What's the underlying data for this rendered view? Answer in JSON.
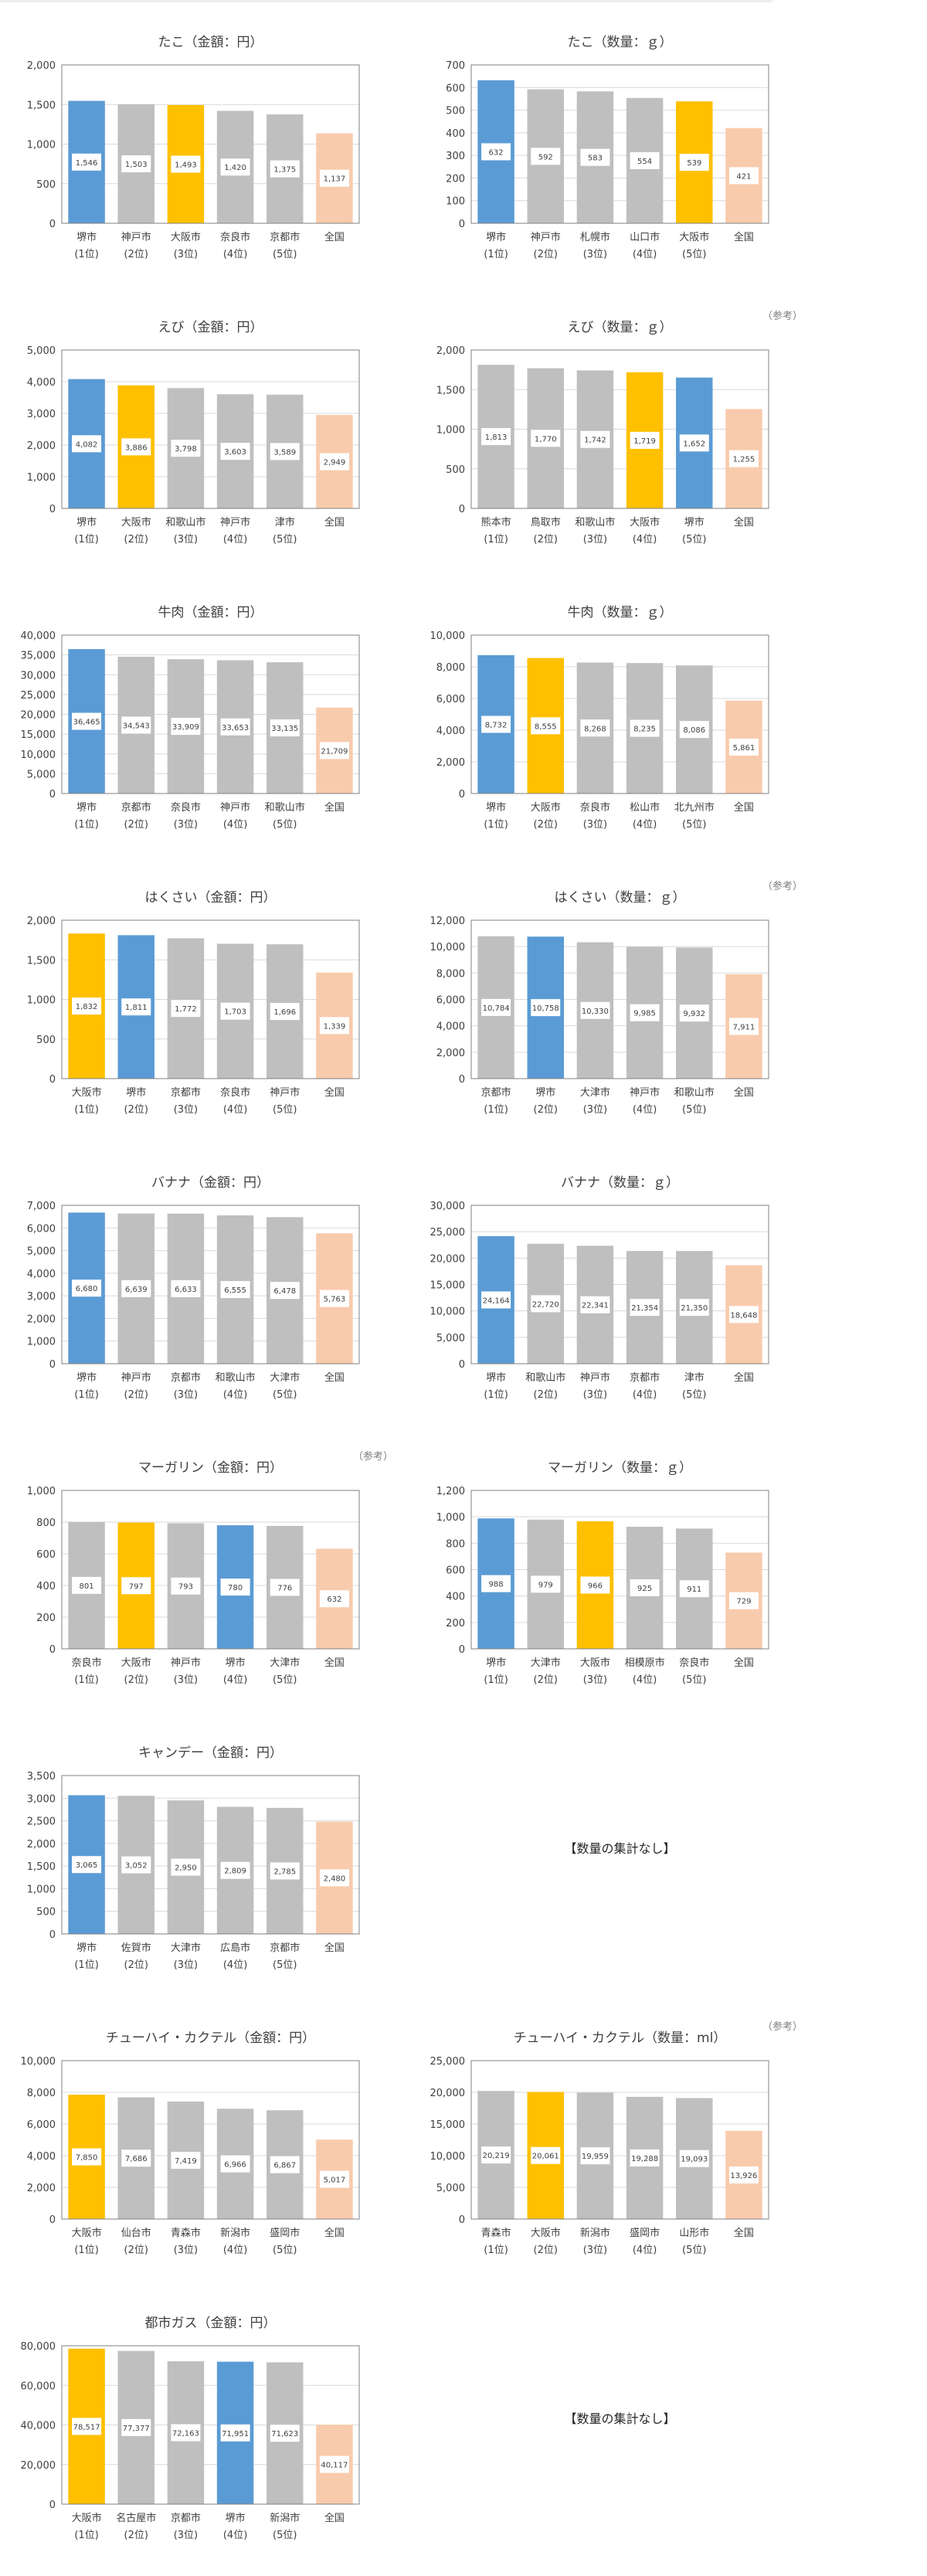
{
  "colors": {
    "blue": "#5b9bd5",
    "yellow": "#ffc000",
    "gray": "#bfbfbf",
    "national": "#f8cbad"
  },
  "notes": {
    "sankou": "（参考）",
    "no_quantity": "【数量の集計なし】"
  },
  "chart_data": [
    {
      "type": "bar",
      "title": "たこ（金額：円）",
      "ylim": [
        0,
        2000
      ],
      "yticks": [
        0,
        500,
        1000,
        1500,
        2000
      ],
      "categories": [
        "堺市",
        "神戸市",
        "大阪市",
        "奈良市",
        "京都市",
        "全国"
      ],
      "ranks": [
        "(1位)",
        "(2位)",
        "(3位)",
        "(4位)",
        "(5位)",
        ""
      ],
      "values": [
        1546,
        1503,
        1493,
        1420,
        1375,
        1137
      ],
      "value_labels": [
        "1,546",
        "1,503",
        "1,493",
        "1,420",
        "1,375",
        "1,137"
      ],
      "bar_colors": [
        "blue",
        "gray",
        "yellow",
        "gray",
        "gray",
        "national"
      ]
    },
    {
      "type": "bar",
      "title": "たこ（数量：ｇ）",
      "ylim": [
        0,
        700
      ],
      "yticks": [
        0,
        100,
        200,
        300,
        400,
        500,
        600,
        700
      ],
      "categories": [
        "堺市",
        "神戸市",
        "札幌市",
        "山口市",
        "大阪市",
        "全国"
      ],
      "ranks": [
        "(1位)",
        "(2位)",
        "(3位)",
        "(4位)",
        "(5位)",
        ""
      ],
      "values": [
        632,
        592,
        583,
        554,
        539,
        421
      ],
      "value_labels": [
        "632",
        "592",
        "583",
        "554",
        "539",
        "421"
      ],
      "bar_colors": [
        "blue",
        "gray",
        "gray",
        "gray",
        "yellow",
        "national"
      ]
    },
    {
      "type": "bar",
      "title": "えび（金額：円）",
      "ylim": [
        0,
        5000
      ],
      "yticks": [
        0,
        1000,
        2000,
        3000,
        4000,
        5000
      ],
      "categories": [
        "堺市",
        "大阪市",
        "和歌山市",
        "神戸市",
        "津市",
        "全国"
      ],
      "ranks": [
        "(1位)",
        "(2位)",
        "(3位)",
        "(4位)",
        "(5位)",
        ""
      ],
      "values": [
        4082,
        3886,
        3798,
        3603,
        3589,
        2949
      ],
      "value_labels": [
        "4,082",
        "3,886",
        "3,798",
        "3,603",
        "3,589",
        "2,949"
      ],
      "bar_colors": [
        "blue",
        "yellow",
        "gray",
        "gray",
        "gray",
        "national"
      ]
    },
    {
      "type": "bar",
      "title": "えび（数量：ｇ）",
      "ylim": [
        0,
        2000
      ],
      "yticks": [
        0,
        500,
        1000,
        1500,
        2000
      ],
      "note": "sankou",
      "categories": [
        "熊本市",
        "鳥取市",
        "和歌山市",
        "大阪市",
        "堺市",
        "全国"
      ],
      "ranks": [
        "(1位)",
        "(2位)",
        "(3位)",
        "(4位)",
        "(5位)",
        ""
      ],
      "values": [
        1813,
        1770,
        1742,
        1719,
        1652,
        1255
      ],
      "value_labels": [
        "1,813",
        "1,770",
        "1,742",
        "1,719",
        "1,652",
        "1,255"
      ],
      "bar_colors": [
        "gray",
        "gray",
        "gray",
        "yellow",
        "blue",
        "national"
      ]
    },
    {
      "type": "bar",
      "title": "牛肉（金額：円）",
      "ylim": [
        0,
        40000
      ],
      "yticks": [
        0,
        5000,
        10000,
        15000,
        20000,
        25000,
        30000,
        35000,
        40000
      ],
      "categories": [
        "堺市",
        "京都市",
        "奈良市",
        "神戸市",
        "和歌山市",
        "全国"
      ],
      "ranks": [
        "(1位)",
        "(2位)",
        "(3位)",
        "(4位)",
        "(5位)",
        ""
      ],
      "values": [
        36465,
        34543,
        33909,
        33653,
        33135,
        21709
      ],
      "value_labels": [
        "36,465",
        "34,543",
        "33,909",
        "33,653",
        "33,135",
        "21,709"
      ],
      "bar_colors": [
        "blue",
        "gray",
        "gray",
        "gray",
        "gray",
        "national"
      ]
    },
    {
      "type": "bar",
      "title": "牛肉（数量：ｇ）",
      "ylim": [
        0,
        10000
      ],
      "yticks": [
        0,
        2000,
        4000,
        6000,
        8000,
        10000
      ],
      "categories": [
        "堺市",
        "大阪市",
        "奈良市",
        "松山市",
        "北九州市",
        "全国"
      ],
      "ranks": [
        "(1位)",
        "(2位)",
        "(3位)",
        "(4位)",
        "(5位)",
        ""
      ],
      "values": [
        8732,
        8555,
        8268,
        8235,
        8086,
        5861
      ],
      "value_labels": [
        "8,732",
        "8,555",
        "8,268",
        "8,235",
        "8,086",
        "5,861"
      ],
      "bar_colors": [
        "blue",
        "yellow",
        "gray",
        "gray",
        "gray",
        "national"
      ]
    },
    {
      "type": "bar",
      "title": "はくさい（金額：円）",
      "ylim": [
        0,
        2000
      ],
      "yticks": [
        0,
        500,
        1000,
        1500,
        2000
      ],
      "categories": [
        "大阪市",
        "堺市",
        "京都市",
        "奈良市",
        "神戸市",
        "全国"
      ],
      "ranks": [
        "(1位)",
        "(2位)",
        "(3位)",
        "(4位)",
        "(5位)",
        ""
      ],
      "values": [
        1832,
        1811,
        1772,
        1703,
        1696,
        1339
      ],
      "value_labels": [
        "1,832",
        "1,811",
        "1,772",
        "1,703",
        "1,696",
        "1,339"
      ],
      "bar_colors": [
        "yellow",
        "blue",
        "gray",
        "gray",
        "gray",
        "national"
      ]
    },
    {
      "type": "bar",
      "title": "はくさい（数量：ｇ）",
      "ylim": [
        0,
        12000
      ],
      "yticks": [
        0,
        2000,
        4000,
        6000,
        8000,
        10000,
        12000
      ],
      "note": "sankou",
      "categories": [
        "京都市",
        "堺市",
        "大津市",
        "神戸市",
        "和歌山市",
        "全国"
      ],
      "ranks": [
        "(1位)",
        "(2位)",
        "(3位)",
        "(4位)",
        "(5位)",
        ""
      ],
      "values": [
        10784,
        10758,
        10330,
        9985,
        9932,
        7911
      ],
      "value_labels": [
        "10,784",
        "10,758",
        "10,330",
        "9,985",
        "9,932",
        "7,911"
      ],
      "bar_colors": [
        "gray",
        "blue",
        "gray",
        "gray",
        "gray",
        "national"
      ]
    },
    {
      "type": "bar",
      "title": "バナナ（金額：円）",
      "ylim": [
        0,
        7000
      ],
      "yticks": [
        0,
        1000,
        2000,
        3000,
        4000,
        5000,
        6000,
        7000
      ],
      "categories": [
        "堺市",
        "神戸市",
        "京都市",
        "和歌山市",
        "大津市",
        "全国"
      ],
      "ranks": [
        "(1位)",
        "(2位)",
        "(3位)",
        "(4位)",
        "(5位)",
        ""
      ],
      "values": [
        6680,
        6639,
        6633,
        6555,
        6478,
        5763
      ],
      "value_labels": [
        "6,680",
        "6,639",
        "6,633",
        "6,555",
        "6,478",
        "5,763"
      ],
      "bar_colors": [
        "blue",
        "gray",
        "gray",
        "gray",
        "gray",
        "national"
      ]
    },
    {
      "type": "bar",
      "title": "バナナ（数量：ｇ）",
      "ylim": [
        0,
        30000
      ],
      "yticks": [
        0,
        5000,
        10000,
        15000,
        20000,
        25000,
        30000
      ],
      "categories": [
        "堺市",
        "和歌山市",
        "神戸市",
        "京都市",
        "津市",
        "全国"
      ],
      "ranks": [
        "(1位)",
        "(2位)",
        "(3位)",
        "(4位)",
        "(5位)",
        ""
      ],
      "values": [
        24164,
        22720,
        22341,
        21354,
        21350,
        18648
      ],
      "value_labels": [
        "24,164",
        "22,720",
        "22,341",
        "21,354",
        "21,350",
        "18,648"
      ],
      "bar_colors": [
        "blue",
        "gray",
        "gray",
        "gray",
        "gray",
        "national"
      ]
    },
    {
      "type": "bar",
      "title": "マーガリン（金額：円）",
      "ylim": [
        0,
        1000
      ],
      "yticks": [
        0,
        200,
        400,
        600,
        800,
        1000
      ],
      "note": "sankou",
      "categories": [
        "奈良市",
        "大阪市",
        "神戸市",
        "堺市",
        "大津市",
        "全国"
      ],
      "ranks": [
        "(1位)",
        "(2位)",
        "(3位)",
        "(4位)",
        "(5位)",
        ""
      ],
      "values": [
        801,
        797,
        793,
        780,
        776,
        632
      ],
      "value_labels": [
        "801",
        "797",
        "793",
        "780",
        "776",
        "632"
      ],
      "bar_colors": [
        "gray",
        "yellow",
        "gray",
        "blue",
        "gray",
        "national"
      ]
    },
    {
      "type": "bar",
      "title": "マーガリン（数量：ｇ）",
      "ylim": [
        0,
        1200
      ],
      "yticks": [
        0,
        200,
        400,
        600,
        800,
        1000,
        1200
      ],
      "categories": [
        "堺市",
        "大津市",
        "大阪市",
        "相模原市",
        "奈良市",
        "全国"
      ],
      "ranks": [
        "(1位)",
        "(2位)",
        "(3位)",
        "(4位)",
        "(5位)",
        ""
      ],
      "values": [
        988,
        979,
        966,
        925,
        911,
        729
      ],
      "value_labels": [
        "988",
        "979",
        "966",
        "925",
        "911",
        "729"
      ],
      "bar_colors": [
        "blue",
        "gray",
        "yellow",
        "gray",
        "gray",
        "national"
      ]
    },
    {
      "type": "bar",
      "title": "キャンデー（金額：円）",
      "ylim": [
        0,
        3500
      ],
      "yticks": [
        0,
        500,
        1000,
        1500,
        2000,
        2500,
        3000,
        3500
      ],
      "categories": [
        "堺市",
        "佐賀市",
        "大津市",
        "広島市",
        "京都市",
        "全国"
      ],
      "ranks": [
        "(1位)",
        "(2位)",
        "(3位)",
        "(4位)",
        "(5位)",
        ""
      ],
      "values": [
        3065,
        3052,
        2950,
        2809,
        2785,
        2480
      ],
      "value_labels": [
        "3,065",
        "3,052",
        "2,950",
        "2,809",
        "2,785",
        "2,480"
      ],
      "bar_colors": [
        "blue",
        "gray",
        "gray",
        "gray",
        "gray",
        "national"
      ]
    },
    {
      "type": "bar",
      "title": "チューハイ・カクテル（金額：円）",
      "ylim": [
        0,
        10000
      ],
      "yticks": [
        0,
        2000,
        4000,
        6000,
        8000,
        10000
      ],
      "categories": [
        "大阪市",
        "仙台市",
        "青森市",
        "新潟市",
        "盛岡市",
        "全国"
      ],
      "ranks": [
        "(1位)",
        "(2位)",
        "(3位)",
        "(4位)",
        "(5位)",
        ""
      ],
      "values": [
        7850,
        7686,
        7419,
        6966,
        6867,
        5017
      ],
      "value_labels": [
        "7,850",
        "7,686",
        "7,419",
        "6,966",
        "6,867",
        "5,017"
      ],
      "bar_colors": [
        "yellow",
        "gray",
        "gray",
        "gray",
        "gray",
        "national"
      ]
    },
    {
      "type": "bar",
      "title": "チューハイ・カクテル（数量：ml）",
      "ylim": [
        0,
        25000
      ],
      "yticks": [
        0,
        5000,
        10000,
        15000,
        20000,
        25000
      ],
      "note": "sankou",
      "categories": [
        "青森市",
        "大阪市",
        "新潟市",
        "盛岡市",
        "山形市",
        "全国"
      ],
      "ranks": [
        "(1位)",
        "(2位)",
        "(3位)",
        "(4位)",
        "(5位)",
        ""
      ],
      "values": [
        20219,
        20061,
        19959,
        19288,
        19093,
        13926
      ],
      "value_labels": [
        "20,219",
        "20,061",
        "19,959",
        "19,288",
        "19,093",
        "13,926"
      ],
      "bar_colors": [
        "gray",
        "yellow",
        "gray",
        "gray",
        "gray",
        "national"
      ]
    },
    {
      "type": "bar",
      "title": "都市ガス（金額：円）",
      "ylim": [
        0,
        80000
      ],
      "yticks": [
        0,
        20000,
        40000,
        60000,
        80000
      ],
      "categories": [
        "大阪市",
        "名古屋市",
        "京都市",
        "堺市",
        "新潟市",
        "全国"
      ],
      "ranks": [
        "(1位)",
        "(2位)",
        "(3位)",
        "(4位)",
        "(5位)",
        ""
      ],
      "values": [
        78517,
        77377,
        72163,
        71951,
        71623,
        40117
      ],
      "value_labels": [
        "78,517",
        "77,377",
        "72,163",
        "71,951",
        "71,623",
        "40,117"
      ],
      "bar_colors": [
        "yellow",
        "gray",
        "gray",
        "blue",
        "gray",
        "national"
      ]
    }
  ]
}
